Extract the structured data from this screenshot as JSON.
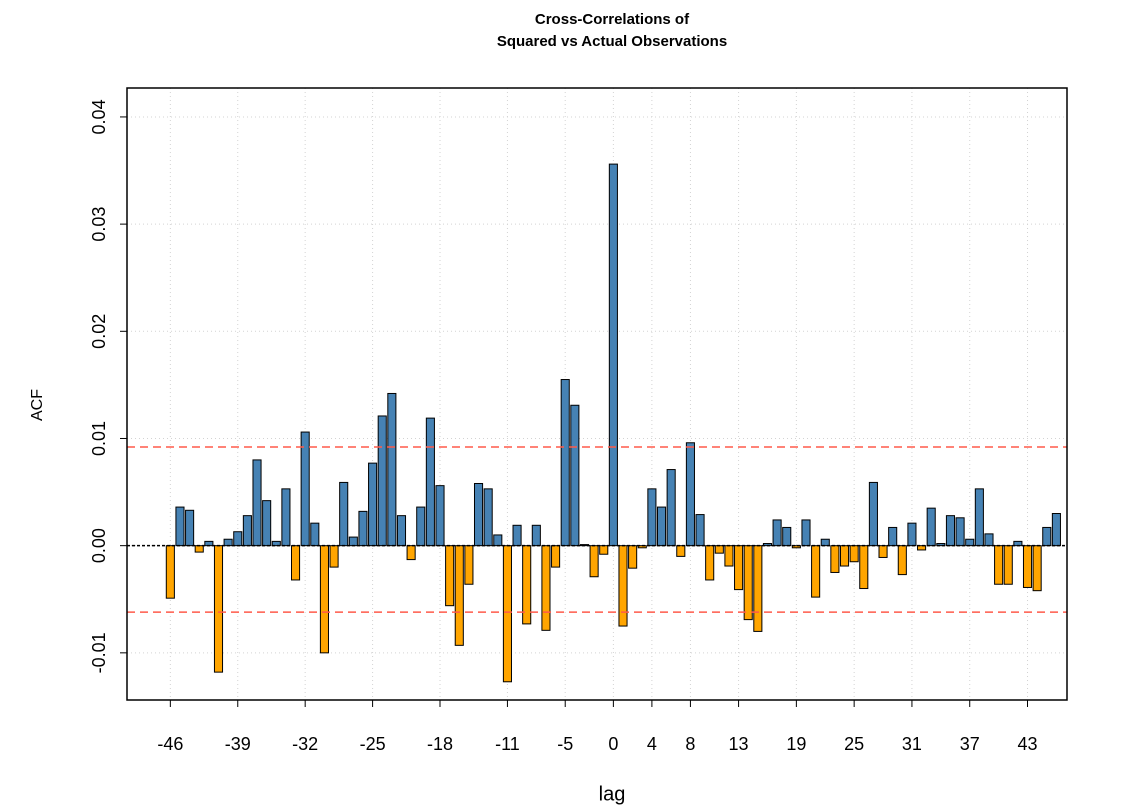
{
  "chart_data": {
    "type": "bar",
    "title": "Cross-Correlations of",
    "subtitle": "Squared vs Actual Observations",
    "xlabel": "lag",
    "ylabel": "ACF",
    "x": [
      -46,
      -45,
      -44,
      -43,
      -42,
      -41,
      -40,
      -39,
      -38,
      -37,
      -36,
      -35,
      -34,
      -33,
      -32,
      -31,
      -30,
      -29,
      -28,
      -27,
      -26,
      -25,
      -24,
      -23,
      -22,
      -21,
      -20,
      -19,
      -18,
      -17,
      -16,
      -15,
      -14,
      -13,
      -12,
      -11,
      -10,
      -9,
      -8,
      -7,
      -6,
      -5,
      -4,
      -3,
      -2,
      -1,
      0,
      1,
      2,
      3,
      4,
      5,
      6,
      7,
      8,
      9,
      10,
      11,
      12,
      13,
      14,
      15,
      16,
      17,
      18,
      19,
      20,
      21,
      22,
      23,
      24,
      25,
      26,
      27,
      28,
      29,
      30,
      31,
      32,
      33,
      34,
      35,
      36,
      37,
      38,
      39,
      40,
      41,
      42,
      43,
      44,
      45,
      46
    ],
    "values": [
      -0.0049,
      0.0036,
      0.0033,
      -0.0006,
      0.0004,
      -0.0118,
      0.0006,
      0.0013,
      0.0028,
      0.008,
      0.0042,
      0.0004,
      0.0053,
      -0.0032,
      0.0106,
      0.0021,
      -0.01,
      -0.002,
      0.0059,
      0.0008,
      0.0032,
      0.0077,
      0.0121,
      0.0142,
      0.0028,
      -0.0013,
      0.0036,
      0.0119,
      0.0056,
      -0.0056,
      -0.0093,
      -0.0036,
      0.0058,
      0.0053,
      0.001,
      -0.0127,
      0.0019,
      -0.0073,
      0.0019,
      -0.0079,
      -0.002,
      0.0155,
      0.0131,
      0.0001,
      -0.0029,
      -0.0008,
      0.0356,
      -0.0075,
      -0.0021,
      -0.0002,
      0.0053,
      0.0036,
      0.0071,
      -0.001,
      0.0096,
      0.0029,
      -0.0032,
      -0.0007,
      -0.0019,
      -0.0041,
      -0.0069,
      -0.008,
      0.0002,
      0.0024,
      0.0017,
      -0.0002,
      0.0024,
      -0.0048,
      0.0006,
      -0.0025,
      -0.0019,
      -0.0015,
      -0.004,
      0.0059,
      -0.0011,
      0.0017,
      -0.0027,
      0.0021,
      -0.0004,
      0.0035,
      0.0002,
      0.0028,
      0.0026,
      0.0006,
      0.0053,
      0.0011,
      -0.0036,
      -0.0036,
      0.0004,
      -0.0039,
      -0.0042,
      0.0017,
      0.003
    ],
    "positive_color": "#4682b4",
    "negative_color": "#ffa500",
    "confidence_lines": [
      0.0092,
      -0.0062
    ],
    "confidence_color": "#ff5a4a",
    "xlim": [
      -50.5,
      47.1
    ],
    "ylim": [
      -0.0144,
      0.0427
    ],
    "xticks": [
      -46,
      -39,
      -32,
      -25,
      -18,
      -11,
      -5,
      0,
      4,
      8,
      13,
      19,
      25,
      31,
      37,
      43
    ],
    "yticks": [
      0.04,
      0.03,
      0.02,
      0.01,
      {
        "value": 0,
        "label": "0.00"
      },
      -0.01
    ],
    "grid": true
  }
}
